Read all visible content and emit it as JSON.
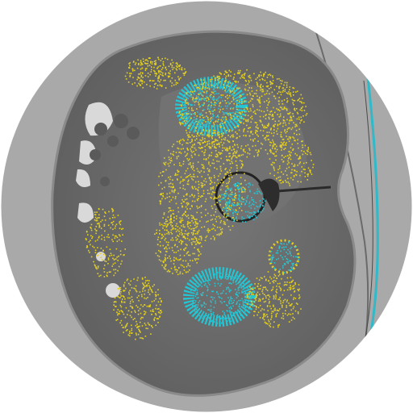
{
  "image": {
    "kind": "axial CT slice with colour overlay",
    "colors": {
      "page": "#ffffff",
      "fov_disc": "#a9a9a9",
      "body": "#6e6e6e",
      "body_edge": "#8a8a8a",
      "bowel_gas": "#d9d9d9",
      "overlay_yellow": "#e6d21c",
      "overlay_cyan": "#22c7d6",
      "table_line": "#2fb9c9"
    }
  }
}
